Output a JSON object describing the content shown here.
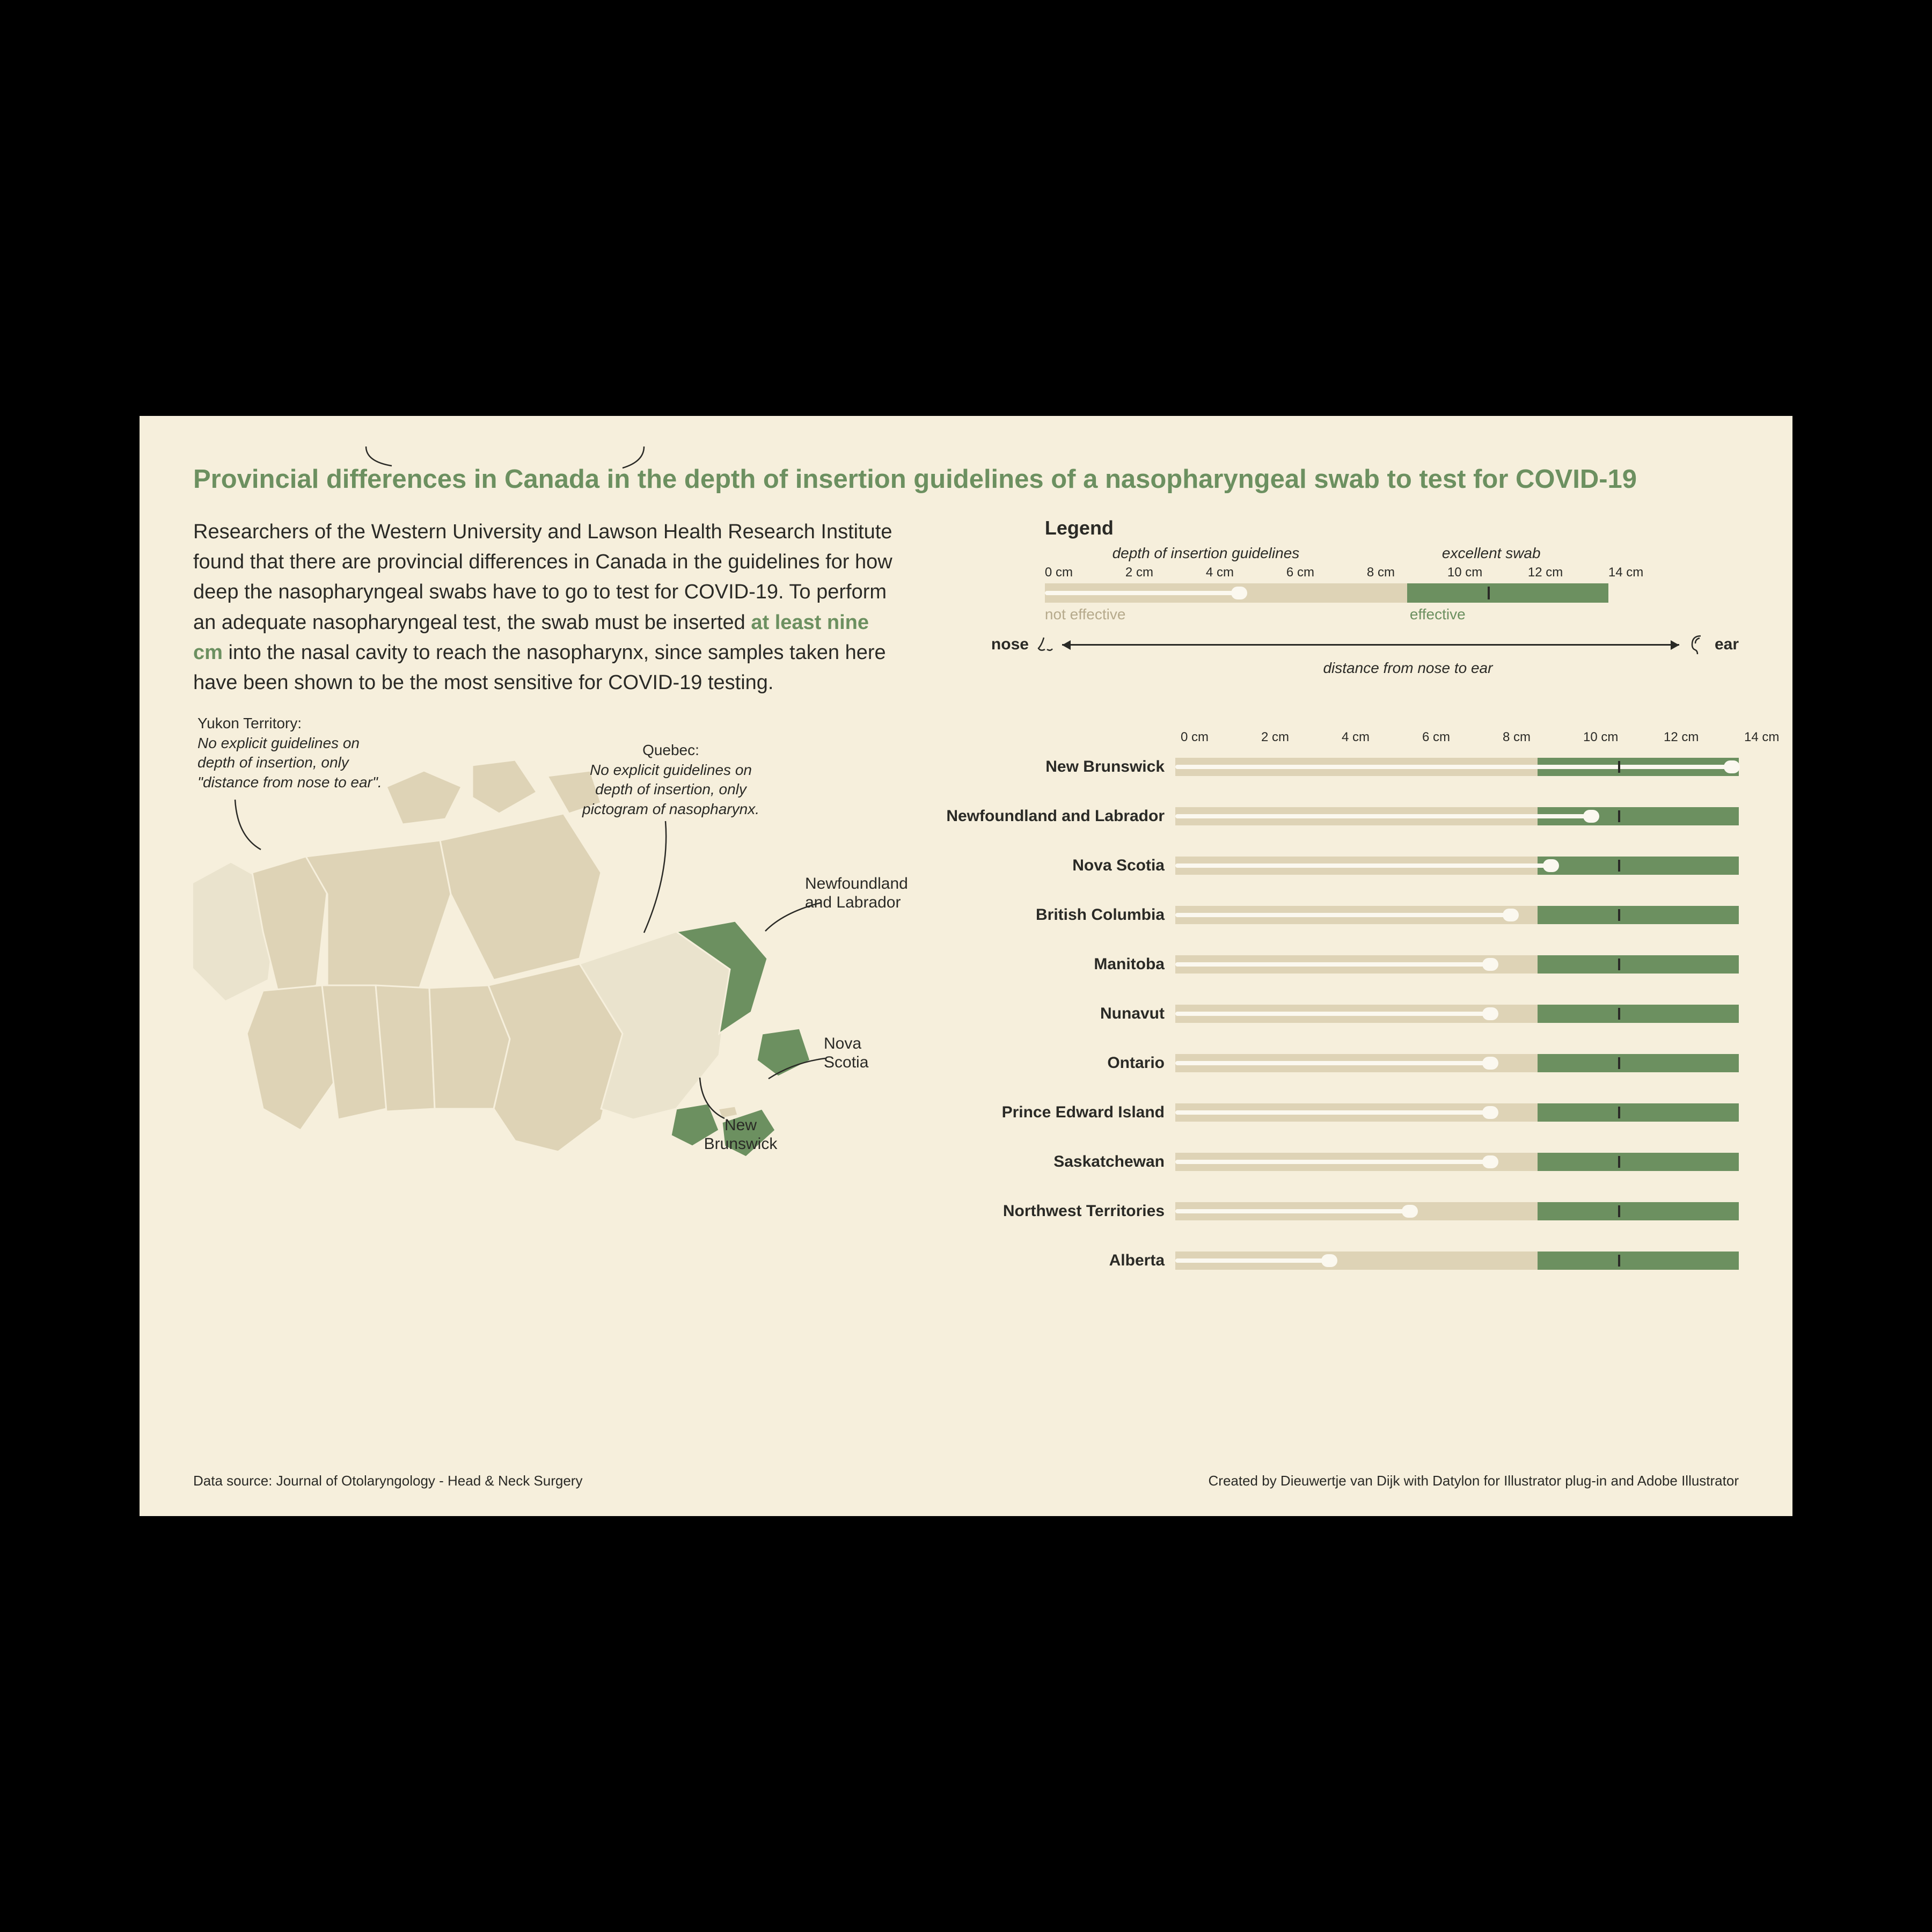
{
  "viz": {
    "title": "Provincial differences in Canada in the depth of insertion guidelines of a nasopharyngeal swab to test for COVID-19",
    "title_color": "#6c9060",
    "intro_pre": "Researchers of the Western University and Lawson Health Research Institute found that there are provincial differences in Canada in the guidelines for how deep the nasopharyngeal swabs have to go to test for COVID-19.  To perform an adequate nasopharyngeal test, the swab must be inserted ",
    "intro_em": "at least nine cm",
    "intro_em_color": "#6c9060",
    "intro_post": " into the nasal cavity to reach the nasopharynx, since samples taken here have been shown to be the most sensitive for COVID-19 testing.",
    "legend": {
      "title": "Legend",
      "sub1": "depth of insertion guidelines",
      "sub2": "excellent swab",
      "ticks": [
        "0 cm",
        "2 cm",
        "4 cm",
        "6 cm",
        "8 cm",
        "10 cm",
        "12 cm",
        "14 cm"
      ],
      "not_effective": "not effective",
      "effective": "effective",
      "threshold_cm": 9,
      "excellent_cm": 11,
      "swab_cm": 5,
      "max_cm": 14,
      "nose": "nose",
      "ear": "ear",
      "distance": "distance from nose to ear"
    },
    "map_notes": {
      "yukon": {
        "title": "Yukon Territory:",
        "body": "No explicit guidelines on depth of insertion, only \"distance from nose to ear\"."
      },
      "quebec": {
        "title": "Quebec:",
        "body": "No explicit guidelines on depth of insertion, only pictogram of nasopharynx."
      },
      "nl": "Newfoundland and Labrador",
      "ns": "Nova Scotia",
      "nb": "New Brunswick"
    },
    "chart": {
      "ticks": [
        "0 cm",
        "2 cm",
        "4 cm",
        "6 cm",
        "8 cm",
        "10 cm",
        "12 cm",
        "14 cm"
      ],
      "threshold_cm": 9,
      "excellent_cm": 11,
      "max_cm": 14,
      "rows": [
        {
          "name": "New Brunswick",
          "swab_cm": 14
        },
        {
          "name": "Newfoundland and Labrador",
          "swab_cm": 10.5
        },
        {
          "name": "Nova Scotia",
          "swab_cm": 9.5
        },
        {
          "name": "British Columbia",
          "swab_cm": 8.5
        },
        {
          "name": "Manitoba",
          "swab_cm": 8
        },
        {
          "name": "Nunavut",
          "swab_cm": 8
        },
        {
          "name": "Ontario",
          "swab_cm": 8
        },
        {
          "name": "Prince Edward Island",
          "swab_cm": 8
        },
        {
          "name": "Saskatchewan",
          "swab_cm": 8
        },
        {
          "name": "Northwest Territories",
          "swab_cm": 6
        },
        {
          "name": "Alberta",
          "swab_cm": 4
        }
      ]
    },
    "colors": {
      "bg": "#f6efdc",
      "not_effective_bar": "#ded3b6",
      "effective_bar": "#6c9060",
      "swab": "#fbf8ef",
      "mark": "#2a2a26",
      "highlight_province": "#6c9060",
      "base_province": "#ded3b6",
      "ghost_province": "#eae3cd",
      "not_effective_text": "#b6aa8c"
    },
    "footer": {
      "source": "Data source: Journal of Otolaryngology - Head  &  Neck Surgery",
      "credit": "Created by Dieuwertje van Dijk with Datylon for Illustrator plug-in and Adobe Illustrator"
    }
  }
}
